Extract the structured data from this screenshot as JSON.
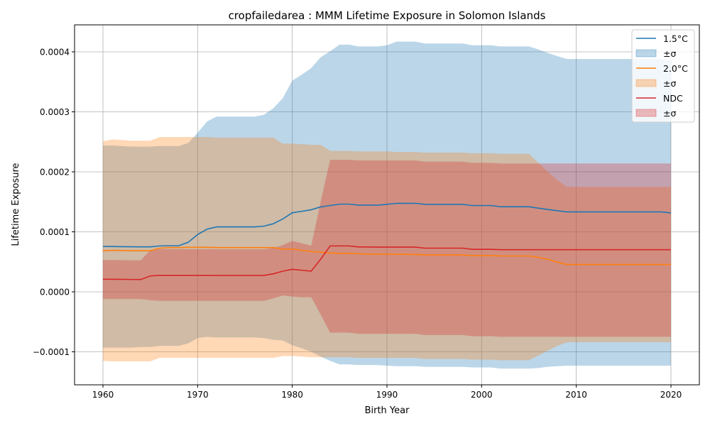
{
  "chart_data": {
    "type": "line",
    "title": "cropfailedarea : MMM Lifetime Exposure in Solomon Islands",
    "xlabel": "Birth Year",
    "ylabel": "Lifetime Exposure",
    "xlim": [
      1957,
      2023
    ],
    "ylim": [
      -0.000155,
      0.000445
    ],
    "x_ticks": [
      1960,
      1970,
      1980,
      1990,
      2000,
      2010,
      2020
    ],
    "y_ticks": [
      -0.0001,
      0.0,
      0.0001,
      0.0002,
      0.0003,
      0.0004
    ],
    "y_tick_labels": [
      "−0.0001",
      "0.0000",
      "0.0001",
      "0.0002",
      "0.0003",
      "0.0004"
    ],
    "grid": true,
    "legend_position": "top-right",
    "x": [
      1960,
      1961,
      1962,
      1963,
      1964,
      1965,
      1966,
      1967,
      1968,
      1969,
      1970,
      1971,
      1972,
      1973,
      1974,
      1975,
      1976,
      1977,
      1978,
      1979,
      1980,
      1981,
      1982,
      1983,
      1984,
      1985,
      1986,
      1987,
      1988,
      1989,
      1990,
      1991,
      1992,
      1993,
      1994,
      1995,
      1996,
      1997,
      1998,
      1999,
      2000,
      2001,
      2002,
      2003,
      2004,
      2005,
      2006,
      2007,
      2008,
      2009,
      2010,
      2011,
      2012,
      2013,
      2014,
      2015,
      2016,
      2017,
      2018,
      2019,
      2020
    ],
    "series": [
      {
        "name": "1.5°C",
        "band_label": "±σ",
        "color": "#1f77b4",
        "fill": "#1f77b4",
        "values": [
          7.55e-05,
          7.55e-05,
          7.53e-05,
          7.51e-05,
          7.5e-05,
          7.5e-05,
          7.65e-05,
          7.68e-05,
          7.68e-05,
          8.25e-05,
          9.55e-05,
          0.0001045,
          0.0001082,
          0.0001082,
          0.0001082,
          0.0001082,
          0.0001082,
          0.0001095,
          0.0001135,
          0.0001215,
          0.0001318,
          0.0001342,
          0.0001368,
          0.0001415,
          0.0001438,
          0.0001462,
          0.0001462,
          0.0001445,
          0.0001445,
          0.0001445,
          0.0001458,
          0.0001475,
          0.0001475,
          0.0001475,
          0.0001458,
          0.0001458,
          0.0001458,
          0.0001458,
          0.0001458,
          0.0001438,
          0.0001438,
          0.0001438,
          0.0001418,
          0.0001418,
          0.0001418,
          0.0001418,
          0.0001395,
          0.0001372,
          0.0001352,
          0.0001332,
          0.0001332,
          0.0001332,
          0.0001332,
          0.0001332,
          0.0001332,
          0.0001332,
          0.0001332,
          0.0001332,
          0.0001332,
          0.0001332,
          0.0001315
        ],
        "upper": [
          0.000244,
          0.000244,
          0.000243,
          0.000242,
          0.000242,
          0.000242,
          0.000243,
          0.000243,
          0.000243,
          0.000248,
          0.000265,
          0.000284,
          0.000292,
          0.000292,
          0.000292,
          0.000292,
          0.000292,
          0.000295,
          0.000306,
          0.000323,
          0.000352,
          0.000362,
          0.000373,
          0.000391,
          0.000401,
          0.000412,
          0.000412,
          0.000409,
          0.000409,
          0.000409,
          0.000411,
          0.000417,
          0.000417,
          0.000417,
          0.000414,
          0.000414,
          0.000414,
          0.000414,
          0.000414,
          0.000411,
          0.000411,
          0.000411,
          0.000409,
          0.000409,
          0.000409,
          0.000409,
          0.000404,
          0.000398,
          0.000393,
          0.000388,
          0.000388,
          0.000388,
          0.000388,
          0.000388,
          0.000388,
          0.000388,
          0.000388,
          0.000388,
          0.000388,
          0.000388,
          0.000385
        ],
        "lower": [
          -9.3e-05,
          -9.3e-05,
          -9.3e-05,
          -9.3e-05,
          -9.2e-05,
          -9.2e-05,
          -9e-05,
          -9e-05,
          -9e-05,
          -8.6e-05,
          -7.7e-05,
          -7.5e-05,
          -7.6e-05,
          -7.6e-05,
          -7.6e-05,
          -7.6e-05,
          -7.6e-05,
          -7.7e-05,
          -8e-05,
          -8.1e-05,
          -8.9e-05,
          -9.4e-05,
          -0.0001,
          -0.000108,
          -0.000115,
          -0.000121,
          -0.000121,
          -0.000122,
          -0.000122,
          -0.000122,
          -0.000123,
          -0.000124,
          -0.000124,
          -0.000124,
          -0.000125,
          -0.000125,
          -0.000125,
          -0.000125,
          -0.000125,
          -0.000126,
          -0.000126,
          -0.000126,
          -0.000128,
          -0.000128,
          -0.000128,
          -0.000128,
          -0.000127,
          -0.000125,
          -0.000124,
          -0.000123,
          -0.000123,
          -0.000123,
          -0.000123,
          -0.000123,
          -0.000123,
          -0.000123,
          -0.000123,
          -0.000123,
          -0.000123,
          -0.000123,
          -0.000123
        ]
      },
      {
        "name": "2.0°C",
        "band_label": "±σ",
        "color": "#ff7f0e",
        "fill": "#ff7f0e",
        "values": [
          6.85e-05,
          6.92e-05,
          6.88e-05,
          6.85e-05,
          6.85e-05,
          6.85e-05,
          7.28e-05,
          7.38e-05,
          7.38e-05,
          7.42e-05,
          7.42e-05,
          7.42e-05,
          7.38e-05,
          7.38e-05,
          7.38e-05,
          7.38e-05,
          7.38e-05,
          7.38e-05,
          7.38e-05,
          7.12e-05,
          7.12e-05,
          6.92e-05,
          6.72e-05,
          6.62e-05,
          6.48e-05,
          6.42e-05,
          6.42e-05,
          6.35e-05,
          6.28e-05,
          6.28e-05,
          6.28e-05,
          6.25e-05,
          6.25e-05,
          6.22e-05,
          6.15e-05,
          6.15e-05,
          6.15e-05,
          6.15e-05,
          6.15e-05,
          6.05e-05,
          6.05e-05,
          6.05e-05,
          5.98e-05,
          5.98e-05,
          5.98e-05,
          5.98e-05,
          5.75e-05,
          5.42e-05,
          4.95e-05,
          4.55e-05,
          4.55e-05,
          4.55e-05,
          4.55e-05,
          4.55e-05,
          4.55e-05,
          4.55e-05,
          4.55e-05,
          4.55e-05,
          4.55e-05,
          4.55e-05,
          4.55e-05
        ],
        "upper": [
          0.000251,
          0.000254,
          0.000253,
          0.000252,
          0.000252,
          0.000252,
          0.000258,
          0.000258,
          0.000258,
          0.000258,
          0.000258,
          0.000258,
          0.000257,
          0.000257,
          0.000257,
          0.000257,
          0.000257,
          0.000257,
          0.000257,
          0.000247,
          0.000247,
          0.000246,
          0.000245,
          0.000245,
          0.000235,
          0.000235,
          0.000235,
          0.000234,
          0.000234,
          0.000234,
          0.000234,
          0.000233,
          0.000233,
          0.000233,
          0.000232,
          0.000232,
          0.000232,
          0.000232,
          0.000232,
          0.000231,
          0.000231,
          0.000231,
          0.00023,
          0.00023,
          0.00023,
          0.00023,
          0.000215,
          0.0002,
          0.000186,
          0.000175,
          0.000175,
          0.000175,
          0.000175,
          0.000175,
          0.000175,
          0.000175,
          0.000175,
          0.000175,
          0.000175,
          0.000175,
          0.000175
        ],
        "lower": [
          -0.000115,
          -0.000116,
          -0.000116,
          -0.000116,
          -0.000116,
          -0.000116,
          -0.00011,
          -0.00011,
          -0.00011,
          -0.00011,
          -0.00011,
          -0.00011,
          -0.00011,
          -0.00011,
          -0.00011,
          -0.00011,
          -0.00011,
          -0.00011,
          -0.00011,
          -0.000107,
          -0.000107,
          -0.000108,
          -0.000109,
          -0.000109,
          -0.000109,
          -0.000109,
          -0.000109,
          -0.00011,
          -0.00011,
          -0.00011,
          -0.00011,
          -0.00011,
          -0.00011,
          -0.00011,
          -0.000112,
          -0.000112,
          -0.000112,
          -0.000112,
          -0.000112,
          -0.000113,
          -0.000113,
          -0.000113,
          -0.000114,
          -0.000114,
          -0.000114,
          -0.000114,
          -0.000106,
          -9.8e-05,
          -9e-05,
          -8.4e-05,
          -8.4e-05,
          -8.4e-05,
          -8.4e-05,
          -8.4e-05,
          -8.4e-05,
          -8.4e-05,
          -8.4e-05,
          -8.4e-05,
          -8.4e-05,
          -8.4e-05,
          -8.4e-05
        ]
      },
      {
        "name": "NDC",
        "band_label": "±σ",
        "color": "#d62728",
        "fill": "#d62728",
        "values": [
          2.1e-05,
          2.1e-05,
          2.08e-05,
          2.06e-05,
          2.05e-05,
          2.65e-05,
          2.75e-05,
          2.75e-05,
          2.75e-05,
          2.75e-05,
          2.75e-05,
          2.75e-05,
          2.73e-05,
          2.73e-05,
          2.73e-05,
          2.73e-05,
          2.73e-05,
          2.73e-05,
          3e-05,
          3.45e-05,
          3.75e-05,
          3.6e-05,
          3.45e-05,
          5.45e-05,
          7.65e-05,
          7.65e-05,
          7.65e-05,
          7.48e-05,
          7.48e-05,
          7.45e-05,
          7.45e-05,
          7.45e-05,
          7.45e-05,
          7.45e-05,
          7.28e-05,
          7.28e-05,
          7.28e-05,
          7.28e-05,
          7.28e-05,
          7.08e-05,
          7.08e-05,
          7.08e-05,
          7.02e-05,
          7.02e-05,
          7.02e-05,
          7.02e-05,
          7.02e-05,
          7.02e-05,
          7.02e-05,
          7.02e-05,
          7.02e-05,
          7.02e-05,
          7.02e-05,
          7.02e-05,
          7.02e-05,
          7.02e-05,
          7.02e-05,
          7.02e-05,
          7.02e-05,
          7.02e-05,
          7.02e-05
        ],
        "upper": [
          5.3e-05,
          5.3e-05,
          5.28e-05,
          5.25e-05,
          5.25e-05,
          6.95e-05,
          7.12e-05,
          7.12e-05,
          7.12e-05,
          7.12e-05,
          7.12e-05,
          7.12e-05,
          7.1e-05,
          7.1e-05,
          7.1e-05,
          7.1e-05,
          7.1e-05,
          7.1e-05,
          7.3e-05,
          7.8e-05,
          8.5e-05,
          8.1e-05,
          7.7e-05,
          0.00015,
          0.00022,
          0.00022,
          0.00022,
          0.000219,
          0.000219,
          0.000219,
          0.000219,
          0.000219,
          0.000219,
          0.000219,
          0.000217,
          0.000217,
          0.000217,
          0.000217,
          0.000217,
          0.000215,
          0.000215,
          0.000215,
          0.000214,
          0.000214,
          0.000214,
          0.000214,
          0.000214,
          0.000214,
          0.000214,
          0.000214,
          0.000214,
          0.000214,
          0.000214,
          0.000214,
          0.000214,
          0.000214,
          0.000214,
          0.000214,
          0.000214,
          0.000214,
          0.000214
        ],
        "lower": [
          -1.2e-05,
          -1.2e-05,
          -1.2e-05,
          -1.2e-05,
          -1.2e-05,
          -1.4e-05,
          -1.5e-05,
          -1.5e-05,
          -1.5e-05,
          -1.5e-05,
          -1.5e-05,
          -1.5e-05,
          -1.5e-05,
          -1.5e-05,
          -1.5e-05,
          -1.5e-05,
          -1.5e-05,
          -1.5e-05,
          -1.1e-05,
          -6e-06,
          -8e-06,
          -9e-06,
          -9e-06,
          -3.8e-05,
          -6.8e-05,
          -6.8e-05,
          -6.8e-05,
          -7e-05,
          -7e-05,
          -7e-05,
          -7e-05,
          -7e-05,
          -7e-05,
          -7e-05,
          -7.2e-05,
          -7.2e-05,
          -7.2e-05,
          -7.2e-05,
          -7.2e-05,
          -7.4e-05,
          -7.4e-05,
          -7.4e-05,
          -7.5e-05,
          -7.5e-05,
          -7.5e-05,
          -7.5e-05,
          -7.5e-05,
          -7.5e-05,
          -7.5e-05,
          -7.5e-05,
          -7.5e-05,
          -7.5e-05,
          -7.5e-05,
          -7.5e-05,
          -7.5e-05,
          -7.5e-05,
          -7.5e-05,
          -7.5e-05,
          -7.5e-05,
          -7.5e-05,
          -7.5e-05
        ]
      }
    ]
  }
}
